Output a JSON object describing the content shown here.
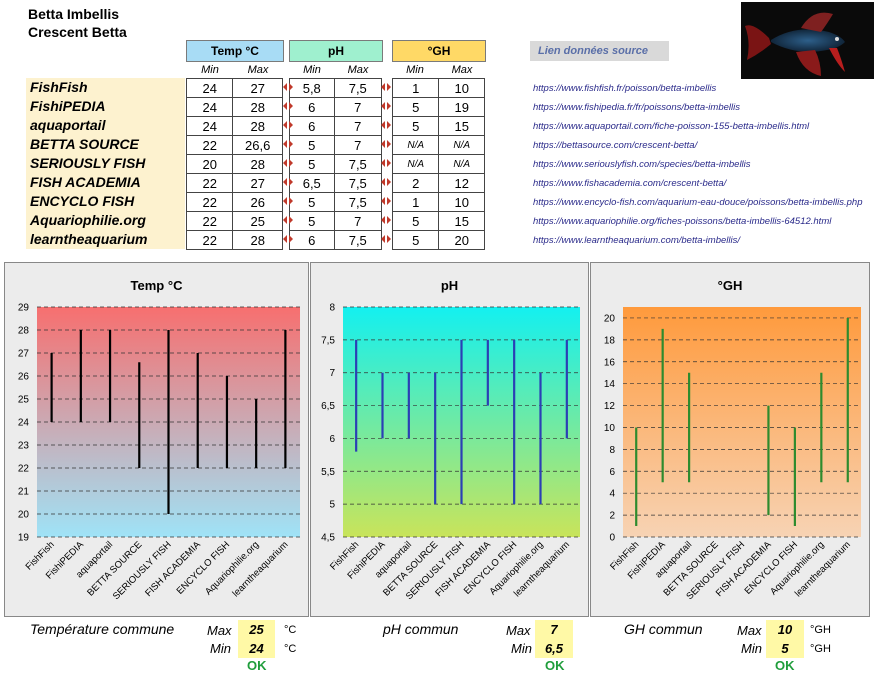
{
  "header": {
    "title_line1": "Betta Imbellis",
    "title_line2": "Crescent Betta",
    "col_temp": "Temp °C",
    "col_ph": "pH",
    "col_gh": "°GH",
    "source_label": "Lien données source",
    "min": "Min",
    "max": "Max",
    "colors": {
      "temp": "#a8dcf5",
      "ph": "#9ff0cf",
      "gh": "#ffd966",
      "names_bg": "#fdf2cf"
    }
  },
  "rows": [
    {
      "name": "FishFish",
      "t_min": "24",
      "t_max": "27",
      "ph_min": "5,8",
      "ph_max": "7,5",
      "gh_min": "1",
      "gh_max": "10",
      "url": "https://www.fishfish.fr/poisson/betta-imbellis"
    },
    {
      "name": "FishiPEDIA",
      "t_min": "24",
      "t_max": "28",
      "ph_min": "6",
      "ph_max": "7",
      "gh_min": "5",
      "gh_max": "19",
      "url": "https://www.fishipedia.fr/fr/poissons/betta-imbellis"
    },
    {
      "name": "aquaportail",
      "t_min": "24",
      "t_max": "28",
      "ph_min": "6",
      "ph_max": "7",
      "gh_min": "5",
      "gh_max": "15",
      "url": "https://www.aquaportail.com/fiche-poisson-155-betta-imbellis.html"
    },
    {
      "name": "BETTA SOURCE",
      "t_min": "22",
      "t_max": "26,6",
      "ph_min": "5",
      "ph_max": "7",
      "gh_min": "N/A",
      "gh_max": "N/A",
      "url": "https://bettasource.com/crescent-betta/"
    },
    {
      "name": "SERIOUSLY FISH",
      "t_min": "20",
      "t_max": "28",
      "ph_min": "5",
      "ph_max": "7,5",
      "gh_min": "N/A",
      "gh_max": "N/A",
      "url": "https://www.seriouslyfish.com/species/betta-imbellis"
    },
    {
      "name": "FISH ACADEMIA",
      "t_min": "22",
      "t_max": "27",
      "ph_min": "6,5",
      "ph_max": "7,5",
      "gh_min": "2",
      "gh_max": "12",
      "url": "https://www.fishacademia.com/crescent-betta/"
    },
    {
      "name": "ENCYCLO FISH",
      "t_min": "22",
      "t_max": "26",
      "ph_min": "5",
      "ph_max": "7,5",
      "gh_min": "1",
      "gh_max": "10",
      "url": "https://www.encyclo-fish.com/aquarium-eau-douce/poissons/betta-imbellis.php"
    },
    {
      "name": "Aquariophilie.org",
      "t_min": "22",
      "t_max": "25",
      "ph_min": "5",
      "ph_max": "7",
      "gh_min": "5",
      "gh_max": "15",
      "url": "https://www.aquariophilie.org/fiches-poissons/betta-imbellis-64512.html"
    },
    {
      "name": "learntheaquarium",
      "t_min": "22",
      "t_max": "28",
      "ph_min": "6",
      "ph_max": "7,5",
      "gh_min": "5",
      "gh_max": "20",
      "url": "https://www.learntheaquarium.com/betta-imbellis/"
    }
  ],
  "chart_data": [
    {
      "type": "bar",
      "title": "Temp °C",
      "categories": [
        "FishFish",
        "FishiPEDIA",
        "aquaportail",
        "BETTA SOURCE",
        "SERIOUSLY FISH",
        "FISH ACADEMIA",
        "ENCYCLO FISH",
        "Aquariophilie.org",
        "learntheaquarium"
      ],
      "min": [
        24,
        24,
        24,
        22,
        20,
        22,
        22,
        22,
        22
      ],
      "max": [
        27,
        28,
        28,
        26.6,
        28,
        27,
        26,
        25,
        28
      ],
      "ylim": [
        19,
        29
      ],
      "yticks": [
        19,
        20,
        21,
        22,
        23,
        24,
        25,
        26,
        27,
        28,
        29
      ],
      "tick_labels": [
        "19",
        "20",
        "21",
        "22",
        "23",
        "24",
        "25",
        "26",
        "27",
        "28",
        "29"
      ],
      "bar_color": "#000000",
      "gradient": [
        "#f76f6f",
        "#9fe3f7"
      ]
    },
    {
      "type": "bar",
      "title": "pH",
      "categories": [
        "FishFish",
        "FishiPEDIA",
        "aquaportail",
        "BETTA SOURCE",
        "SERIOUSLY FISH",
        "FISH ACADEMIA",
        "ENCYCLO FISH",
        "Aquariophilie.org",
        "learntheaquarium"
      ],
      "min": [
        5.8,
        6,
        6,
        5,
        5,
        6.5,
        5,
        5,
        6
      ],
      "max": [
        7.5,
        7,
        7,
        7,
        7.5,
        7.5,
        7.5,
        7,
        7.5
      ],
      "ylim": [
        4.5,
        8
      ],
      "yticks": [
        4.5,
        5,
        5.5,
        6,
        6.5,
        7,
        7.5,
        8
      ],
      "tick_labels": [
        "4,5",
        "5",
        "5,5",
        "6",
        "6,5",
        "7",
        "7,5",
        "8"
      ],
      "bar_color": "#2b3fb5",
      "gradient": [
        "#13f0f0",
        "#c9e45a"
      ]
    },
    {
      "type": "bar",
      "title": "°GH",
      "categories": [
        "FishFish",
        "FishiPEDIA",
        "aquaportail",
        "BETTA SOURCE",
        "SERIOUSLY FISH",
        "FISH ACADEMIA",
        "ENCYCLO FISH",
        "Aquariophilie.org",
        "learntheaquarium"
      ],
      "min": [
        1,
        5,
        5,
        null,
        null,
        2,
        1,
        5,
        5
      ],
      "max": [
        10,
        19,
        15,
        null,
        null,
        12,
        10,
        15,
        20
      ],
      "ylim": [
        0,
        21
      ],
      "yticks": [
        0,
        2,
        4,
        6,
        8,
        10,
        12,
        14,
        16,
        18,
        20
      ],
      "tick_labels": [
        "0",
        "2",
        "4",
        "6",
        "8",
        "10",
        "12",
        "14",
        "16",
        "18",
        "20"
      ],
      "bar_color": "#2e8b2e",
      "gradient": [
        "#ff9a3c",
        "#f7d3b4"
      ]
    }
  ],
  "summary": {
    "temp": {
      "label": "Température commune",
      "max_label": "Max",
      "min_label": "Min",
      "max": "25",
      "min": "24",
      "unit": "°C",
      "status": "OK"
    },
    "ph": {
      "label": "pH commun",
      "max_label": "Max",
      "min_label": "Min",
      "max": "7",
      "min": "6,5",
      "status": "OK"
    },
    "gh": {
      "label": "GH commun",
      "max_label": "Max",
      "min_label": "Min",
      "max": "10",
      "min": "5",
      "unit": "°GH",
      "status": "OK"
    }
  },
  "image": {
    "icon": "betta-fish-photo"
  }
}
